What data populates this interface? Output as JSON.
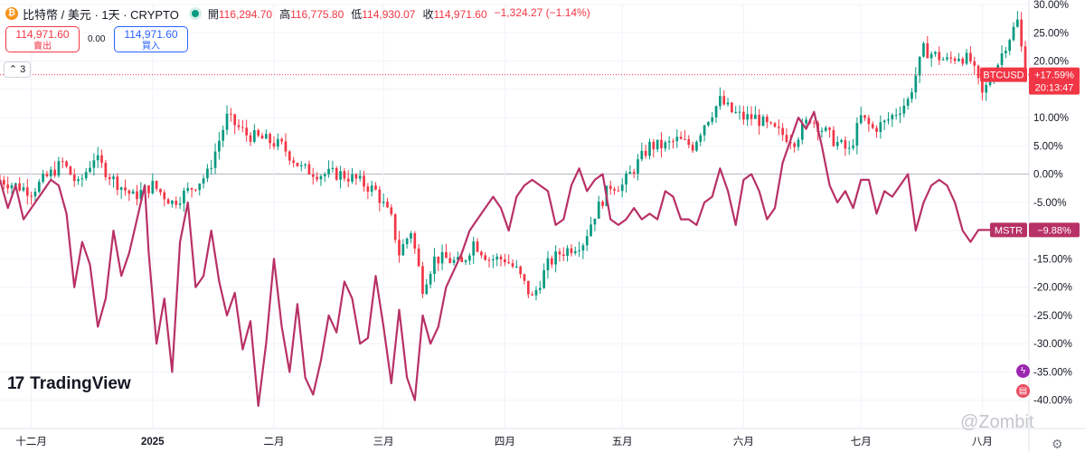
{
  "header": {
    "symbol_title": "比特幣 / 美元 · 1天 · CRYPTO",
    "coin_glyph": "₿",
    "open_label": "開",
    "open_value": "116,294.70",
    "high_label": "高",
    "high_value": "116,775.80",
    "low_label": "低",
    "low_value": "114,930.07",
    "close_label": "收",
    "close_value": "114,971.60",
    "change_value": "−1,324.27 (−1.14%)"
  },
  "trade": {
    "sell_price": "114,971.60",
    "sell_label": "賣出",
    "spread": "0.00",
    "buy_price": "114,971.60",
    "buy_label": "買入"
  },
  "indicator_toggle": {
    "label": "3"
  },
  "logo": {
    "text": "TradingView",
    "mark": "17"
  },
  "watermark": {
    "text": "@Zombit"
  },
  "colors": {
    "up": "#089981",
    "down": "#f23645",
    "compare": "#b83166",
    "last_price_line": "#f23645",
    "zero_line": "#b2b5be",
    "grid": "#f0f3fa"
  },
  "chart_data": {
    "type": "line",
    "y_unit": "percent change",
    "ylim": [
      -45,
      30
    ],
    "y_ticks": [
      30,
      25,
      20,
      15,
      10,
      5,
      0,
      -5,
      -10,
      -15,
      -20,
      -25,
      -30,
      -35,
      -40
    ],
    "y_tick_labels": [
      "30.00%",
      "25.00%",
      "20.00%",
      "15.00%",
      "10.00%",
      "5.00%",
      "0.00%",
      "-5.00%",
      "-10.00%",
      "-15.00%",
      "-20.00%",
      "-25.00%",
      "-30.00%",
      "-35.00%",
      "-40.00%"
    ],
    "x_tick_labels": [
      "十二月",
      "2025",
      "二月",
      "三月",
      "四月",
      "五月",
      "六月",
      "七月",
      "八月"
    ],
    "x_tick_days": [
      8,
      39,
      70,
      98,
      129,
      159,
      190,
      220,
      251
    ],
    "x_end_day": 262,
    "series": [
      {
        "name": "BTCUSD",
        "style": "candlestick",
        "close_sample_days": [
          0,
          8,
          16,
          20,
          24,
          29,
          34,
          39,
          44,
          48,
          53,
          58,
          63,
          68,
          72,
          77,
          82,
          87,
          91,
          96,
          100,
          102,
          105,
          108,
          111,
          114,
          118,
          121,
          125,
          129,
          132,
          136,
          140,
          143,
          146,
          149,
          152,
          156,
          159,
          163,
          166,
          170,
          173,
          177,
          180,
          184,
          187,
          190,
          193,
          197,
          200,
          203,
          207,
          210,
          213,
          217,
          220,
          223,
          226,
          229,
          232,
          236,
          239,
          242,
          245,
          248,
          251,
          254,
          257,
          260,
          262
        ],
        "close_sample_values": [
          -1,
          -3,
          2,
          -2,
          3,
          -1,
          -4,
          -2,
          -5,
          -3,
          0,
          10,
          7,
          6,
          5,
          1,
          0,
          0,
          -1,
          -3,
          -8,
          -14,
          -10,
          -20,
          -15,
          -15,
          -16,
          -12,
          -15,
          -15,
          -17,
          -22,
          -16,
          -14,
          -13,
          -12,
          -7,
          -2,
          -2,
          2,
          5,
          5,
          6,
          5,
          9,
          13,
          11,
          10,
          10,
          8,
          7,
          6,
          10,
          8,
          6,
          4,
          10,
          8,
          9,
          11,
          13,
          22,
          21,
          20,
          21,
          20,
          14,
          18,
          23,
          27,
          17.59
        ]
      },
      {
        "name": "MSTR",
        "style": "line",
        "sample_days": [
          0,
          2,
          4,
          6,
          9,
          11,
          13,
          15,
          17,
          19,
          21,
          23,
          25,
          27,
          29,
          31,
          33,
          35,
          37,
          38,
          40,
          42,
          44,
          46,
          48,
          50,
          52,
          54,
          56,
          58,
          60,
          62,
          64,
          66,
          68,
          70,
          72,
          74,
          76,
          78,
          80,
          82,
          84,
          86,
          88,
          90,
          92,
          94,
          96,
          98,
          100,
          102,
          104,
          106,
          108,
          110,
          112,
          114,
          116,
          118,
          120,
          122,
          124,
          126,
          128,
          130,
          132,
          134,
          136,
          138,
          140,
          142,
          144,
          146,
          148,
          150,
          152,
          154,
          156,
          158,
          160,
          162,
          164,
          166,
          168,
          170,
          172,
          174,
          176,
          178,
          180,
          182,
          184,
          186,
          188,
          190,
          192,
          194,
          196,
          198,
          200,
          202,
          204,
          206,
          208,
          210,
          212,
          214,
          216,
          218,
          220,
          222,
          224,
          226,
          228,
          230,
          232,
          234,
          236,
          238,
          240,
          242,
          244,
          246,
          248,
          250,
          252,
          254,
          256,
          258,
          260,
          262
        ],
        "sample_values": [
          -1,
          -6,
          -2,
          -8,
          -5,
          -3,
          -1,
          -2,
          -7,
          -20,
          -12,
          -16,
          -27,
          -22,
          -10,
          -18,
          -14,
          -8,
          -2,
          -14,
          -30,
          -22,
          -35,
          -12,
          -5,
          -20,
          -18,
          -10,
          -19,
          -25,
          -21,
          -31,
          -26,
          -41,
          -30,
          -15,
          -27,
          -35,
          -23,
          -36,
          -39,
          -33,
          -25,
          -28,
          -19,
          -22,
          -30,
          -29,
          -18,
          -27,
          -37,
          -24,
          -36,
          -40,
          -25,
          -30,
          -27,
          -20,
          -17,
          -14,
          -10,
          -8,
          -6,
          -4,
          -6,
          -10,
          -4,
          -2,
          -1,
          -2,
          -3,
          -9,
          -8,
          -2,
          1,
          -3,
          -1,
          0,
          -8,
          -9,
          -8,
          -6,
          -8,
          -7,
          -8,
          -3,
          -4,
          -8,
          -8,
          -9,
          -5,
          -4,
          1,
          -3,
          -9,
          -1,
          0,
          -3,
          -8,
          -6,
          2,
          6,
          10,
          8,
          11,
          5,
          -2,
          -5,
          -3,
          -6,
          -1,
          -1,
          -7,
          -3,
          -4,
          -2,
          0,
          -10,
          -5,
          -2,
          -1,
          -2,
          -5,
          -10,
          -12,
          -9.88,
          -9.88,
          -9.88,
          -9.88,
          -9.88,
          -9.88,
          -9.88
        ]
      }
    ],
    "last_labels": [
      {
        "series": "BTCUSD",
        "name": "BTCUSD",
        "value": "+17.59%",
        "countdown": "20:13:47"
      },
      {
        "series": "MSTR",
        "name": "MSTR",
        "value": "−9.88%"
      }
    ]
  }
}
